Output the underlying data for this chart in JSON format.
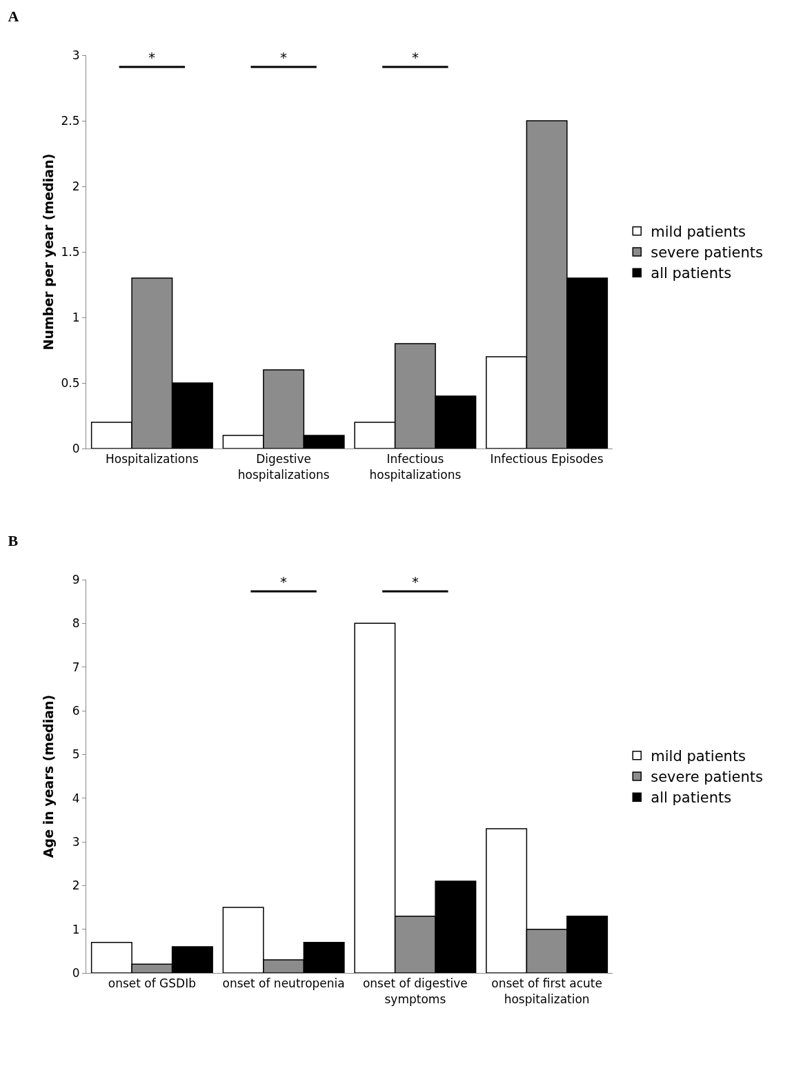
{
  "chart_data": [
    {
      "type": "bar",
      "title": "A",
      "ylabel": "Number per year (median)",
      "categories": [
        "Hospitalizations",
        "Digestive hospitalizations",
        "Infectious hospitalizations",
        "Infectious Episodes"
      ],
      "series": [
        {
          "name": "mild patients",
          "color": "#ffffff",
          "values": [
            0.2,
            0.1,
            0.2,
            0.7
          ]
        },
        {
          "name": "severe patients",
          "color": "#8c8c8c",
          "values": [
            1.3,
            0.6,
            0.8,
            2.5
          ]
        },
        {
          "name": "all patients",
          "color": "#000000",
          "values": [
            0.5,
            0.1,
            0.4,
            1.3
          ]
        }
      ],
      "ylim": [
        0,
        3
      ],
      "yticks": [
        0,
        0.5,
        1,
        1.5,
        2,
        2.5,
        3
      ],
      "grid": false,
      "legend": "right",
      "annotations": [
        "*",
        "*",
        "*"
      ]
    },
    {
      "type": "bar",
      "title": "B",
      "ylabel": "Age in years (median)",
      "categories": [
        "onset of GSDIb",
        "onset of neutropenia",
        "onset of digestive symptoms",
        "onset of first acute hospitalization"
      ],
      "series": [
        {
          "name": "mild patients",
          "color": "#ffffff",
          "values": [
            0.7,
            1.5,
            8,
            3.3
          ]
        },
        {
          "name": "severe patients",
          "color": "#8c8c8c",
          "values": [
            0.2,
            0.3,
            1.3,
            1.0
          ]
        },
        {
          "name": "all patients",
          "color": "#000000",
          "values": [
            0.6,
            0.7,
            2.1,
            1.3
          ]
        }
      ],
      "ylim": [
        0,
        9
      ],
      "yticks": [
        0,
        1,
        2,
        3,
        4,
        5,
        6,
        7,
        8,
        9
      ],
      "grid": false,
      "legend": "right",
      "annotations": [
        "*",
        "*"
      ]
    }
  ]
}
